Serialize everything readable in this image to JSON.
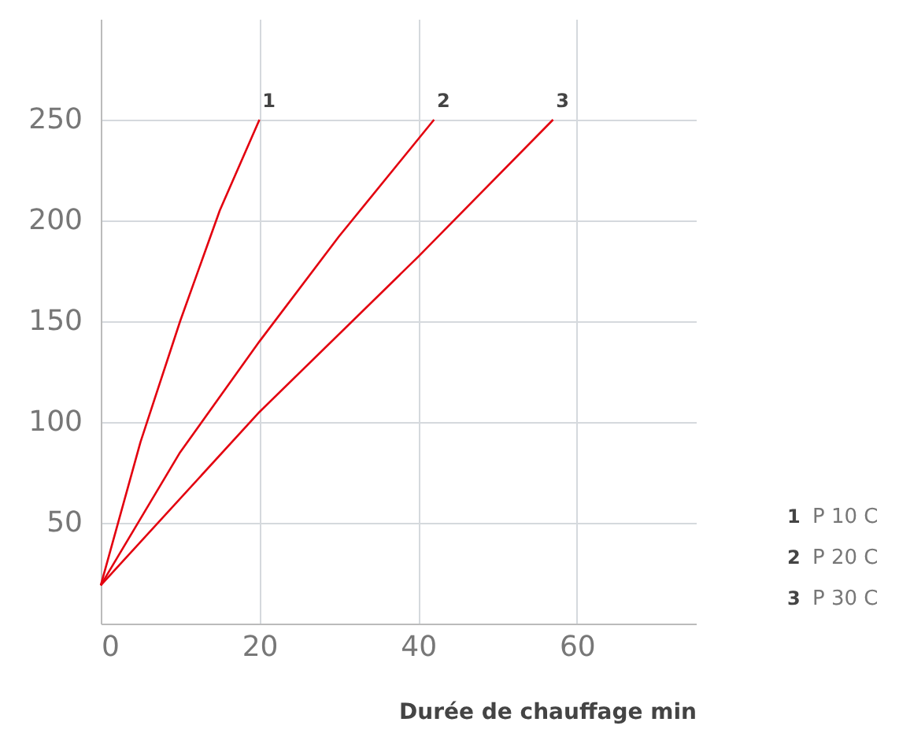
{
  "chart_data": {
    "type": "line",
    "xlabel": "Durée de chauffage min",
    "xlim": [
      0,
      75
    ],
    "xticks": [
      0,
      20,
      40,
      60
    ],
    "ylim": [
      0,
      300
    ],
    "yticks": [
      50,
      100,
      150,
      200,
      250
    ],
    "grid": true,
    "legend": "right",
    "marker": "none",
    "line_style": "solid",
    "series": [
      {
        "name": "P 10 C",
        "color": "#e3000f",
        "x": [
          0,
          5,
          10,
          15,
          20
        ],
        "values": [
          19,
          90,
          150,
          205,
          250
        ]
      },
      {
        "name": "P 20 C",
        "color": "#e3000f",
        "x": [
          0,
          10,
          20,
          30,
          42
        ],
        "values": [
          19,
          85,
          140,
          192,
          250
        ]
      },
      {
        "name": "P 30 C",
        "color": "#e3000f",
        "x": [
          0,
          20,
          40,
          57
        ],
        "values": [
          19,
          105,
          182,
          250
        ]
      }
    ],
    "annotations": [
      {
        "text": "1",
        "x": 20,
        "y": 250
      },
      {
        "text": "2",
        "x": 42,
        "y": 250
      },
      {
        "text": "3",
        "x": 57,
        "y": 250
      }
    ]
  }
}
